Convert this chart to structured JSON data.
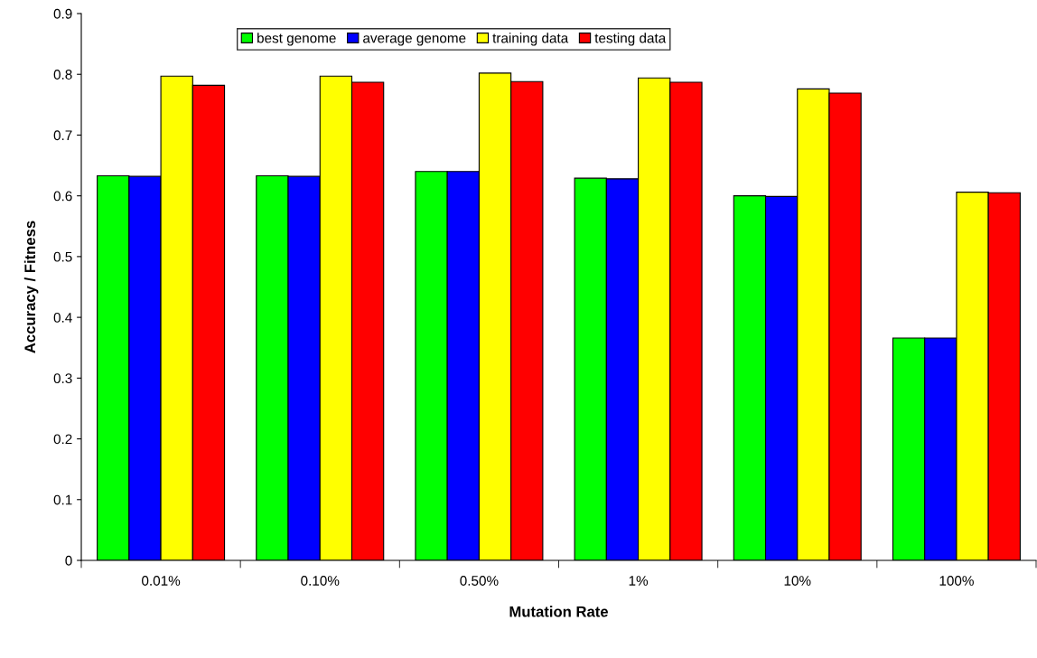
{
  "chart_data": {
    "type": "bar",
    "xlabel": "Mutation Rate",
    "ylabel": "Accuracy / Fitness",
    "categories": [
      "0.01%",
      "0.10%",
      "0.50%",
      "1%",
      "10%",
      "100%"
    ],
    "series": [
      {
        "name": "best genome",
        "color": "#00ff00",
        "values": [
          0.633,
          0.633,
          0.64,
          0.629,
          0.6,
          0.366
        ]
      },
      {
        "name": "average genome",
        "color": "#0000ff",
        "values": [
          0.632,
          0.632,
          0.64,
          0.628,
          0.599,
          0.366
        ]
      },
      {
        "name": "training data",
        "color": "#ffff00",
        "values": [
          0.797,
          0.797,
          0.802,
          0.794,
          0.776,
          0.606
        ]
      },
      {
        "name": "testing data",
        "color": "#ff0000",
        "values": [
          0.782,
          0.787,
          0.788,
          0.787,
          0.769,
          0.605
        ]
      }
    ],
    "ylim": [
      0,
      0.9
    ],
    "yticks": [
      0,
      0.1,
      0.2,
      0.3,
      0.4,
      0.5,
      0.6,
      0.7,
      0.8,
      0.9
    ],
    "grid": false,
    "legend": "top"
  }
}
